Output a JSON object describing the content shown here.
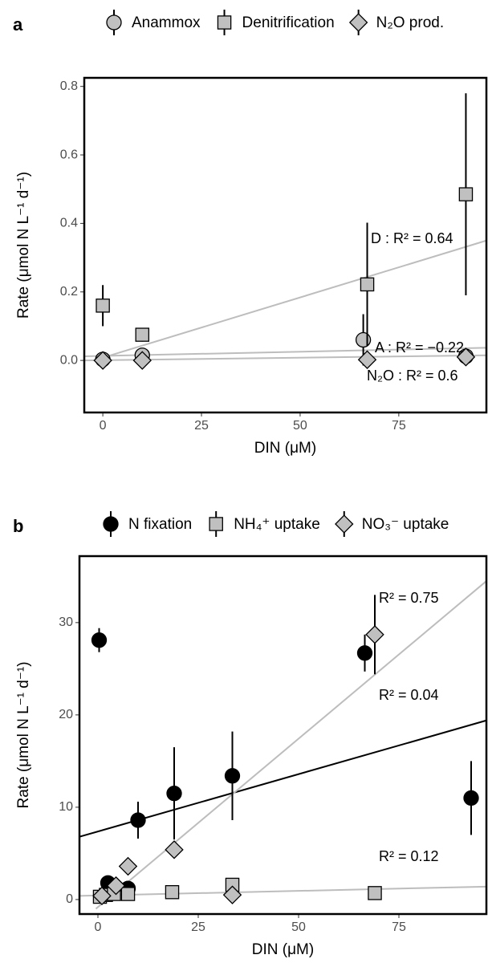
{
  "chart_data": [
    {
      "type": "scatter",
      "panel": "a",
      "xlabel": "DIN (μM)",
      "ylabel": "Rate (μmol N L⁻¹ d⁻¹)",
      "xlim": [
        -4.7,
        97.2
      ],
      "ylim": [
        -0.152,
        0.825
      ],
      "xticks": [
        0,
        25,
        50,
        75
      ],
      "yticks": [
        {
          "value": 0,
          "label": "0.0"
        },
        {
          "value": 0.2,
          "label": "0.2"
        },
        {
          "value": 0.4,
          "label": "0.4"
        },
        {
          "value": 0.6,
          "label": "0.6"
        },
        {
          "value": 0.8,
          "label": "0.8"
        }
      ],
      "series": [
        {
          "name": "Anammox",
          "marker": "circle",
          "color": "#c0c0c0",
          "x": [
            0,
            10,
            66,
            92
          ],
          "values": [
            0.003,
            0.015,
            0.06,
            0.012
          ],
          "errors": [
            null,
            0.01,
            0.075,
            null
          ]
        },
        {
          "name": "Denitrification",
          "marker": "square",
          "color": "#c0c0c0",
          "x": [
            0,
            10,
            67,
            92
          ],
          "values": [
            0.16,
            0.075,
            0.222,
            0.485
          ],
          "errors": [
            0.06,
            0.02,
            0.18,
            0.295
          ]
        },
        {
          "name": "N₂O prod.",
          "marker": "diamond",
          "color": "#c0c0c0",
          "x": [
            0,
            10,
            67,
            92
          ],
          "values": [
            0.0,
            0.0,
            0.002,
            0.01
          ],
          "errors": [
            null,
            null,
            null,
            null
          ]
        }
      ],
      "fits": [
        {
          "color": "#bdbdbd",
          "x": [
            0,
            97.2
          ],
          "values": [
            0.008,
            0.35
          ]
        },
        {
          "color": "#bdbdbd",
          "x": [
            -4.7,
            97.2
          ],
          "values": [
            0.012,
            0.037
          ]
        },
        {
          "color": "#bdbdbd",
          "x": [
            -4.7,
            97.2
          ],
          "values": [
            0.0,
            0.015
          ]
        }
      ],
      "annotations": [
        "D : R² = 0.64",
        "A : R² = −0.22",
        "N₂O : R² = 0.6"
      ]
    },
    {
      "type": "scatter",
      "panel": "b",
      "xlabel": "DIN (μM)",
      "ylabel": "Rate (μmol N L⁻¹ d⁻¹)",
      "xlim": [
        -4.6,
        96.8
      ],
      "ylim": [
        -1.57,
        37.2
      ],
      "xticks": [
        0,
        25,
        50,
        75
      ],
      "yticks": [
        0,
        10,
        20,
        30
      ],
      "series": [
        {
          "name": "N fixation",
          "marker": "circle",
          "color": "#000000",
          "x": [
            0.3,
            2.5,
            7.5,
            10,
            19,
            33.5,
            66.5,
            93
          ],
          "values": [
            28.1,
            1.8,
            1.2,
            8.6,
            11.5,
            13.4,
            26.7,
            11
          ],
          "errors": [
            1.3,
            0.5,
            0.5,
            2,
            5,
            4.8,
            2,
            4
          ]
        },
        {
          "name": "NH₄⁺ uptake",
          "marker": "square",
          "color": "#c0c0c0",
          "x": [
            0.5,
            2,
            4,
            7.5,
            18.5,
            33.5,
            69
          ],
          "values": [
            0.3,
            0.5,
            0.6,
            0.6,
            0.8,
            1.6,
            0.7
          ],
          "errors": [
            null,
            null,
            null,
            null,
            null,
            null,
            null
          ]
        },
        {
          "name": "NO₃⁻ uptake",
          "marker": "diamond",
          "color": "#c0c0c0",
          "x": [
            1,
            4.5,
            7.5,
            19,
            33.5,
            69
          ],
          "values": [
            0.4,
            1.5,
            3.6,
            5.4,
            0.5,
            28.7
          ],
          "errors": [
            null,
            null,
            null,
            null,
            null,
            4.3
          ]
        }
      ],
      "fits": [
        {
          "color": "#000000",
          "x": [
            -4.6,
            96.8
          ],
          "values": [
            6.8,
            19.4
          ]
        },
        {
          "color": "#bdbdbd",
          "x": [
            -0.5,
            96.8
          ],
          "values": [
            -1,
            34.5
          ]
        },
        {
          "color": "#bdbdbd",
          "x": [
            -4.6,
            96.8
          ],
          "values": [
            0.4,
            1.4
          ]
        }
      ],
      "annotations": [
        "R² = 0.75",
        "R² = 0.04",
        "R² = 0.12"
      ]
    }
  ]
}
